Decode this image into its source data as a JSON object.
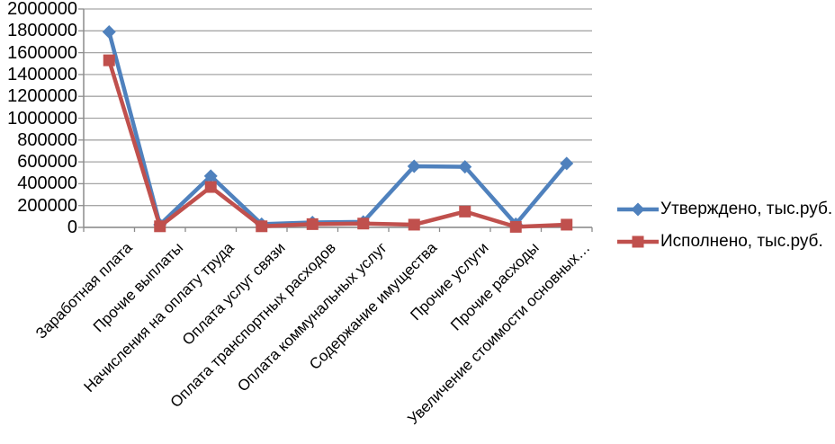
{
  "chart_data": {
    "type": "line",
    "title": "",
    "categories": [
      "Заработная плата",
      "Прочие выплаты",
      "Начисления на оплату труда",
      "Оплата услуг связи",
      "Оплата транспортных расходов",
      "Оплата коммунальных услуг",
      "Содержание имущества",
      "Прочие услуги",
      "Прочие расходы",
      "Увеличение стоимости основных…"
    ],
    "series": [
      {
        "name": "Утверждено, тыс.руб.",
        "color": "#4F81BD",
        "marker": "diamond",
        "values": [
          1790000,
          25000,
          470000,
          30000,
          45000,
          50000,
          560000,
          555000,
          30000,
          585000
        ]
      },
      {
        "name": "Исполнено, тыс.руб.",
        "color": "#C0504D",
        "marker": "square",
        "values": [
          1530000,
          10000,
          370000,
          10000,
          30000,
          35000,
          25000,
          145000,
          5000,
          25000
        ]
      }
    ],
    "ylim": [
      0,
      2000000
    ],
    "ytick_step": 200000,
    "ytick_labels": [
      "0",
      "200000",
      "400000",
      "600000",
      "800000",
      "1000000",
      "1200000",
      "1400000",
      "1600000",
      "1800000",
      "2000000"
    ],
    "xlabel": "",
    "ylabel": "",
    "grid": "horizontal",
    "legend_position": "right",
    "colors": {
      "grid": "#A6A6A6",
      "axis": "#8C8C8C",
      "text": "#000000",
      "background": "#FFFFFF"
    }
  }
}
